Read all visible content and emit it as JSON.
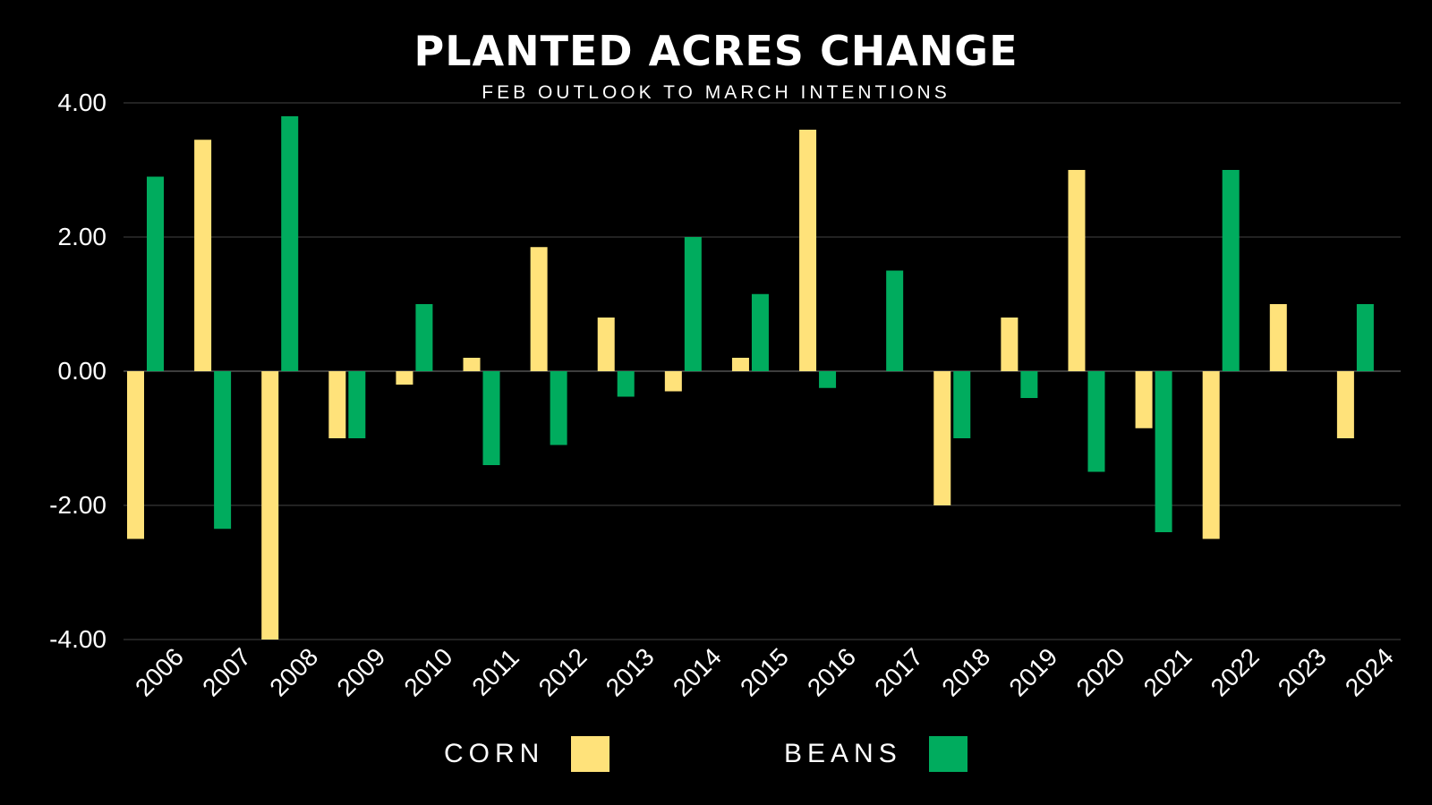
{
  "chart_data": {
    "type": "bar",
    "title": "PLANTED ACRES CHANGE",
    "subtitle": "FEB OUTLOOK TO MARCH INTENTIONS",
    "categories": [
      "2006",
      "2007",
      "2008",
      "2009",
      "2010",
      "2011",
      "2012",
      "2013",
      "2014",
      "2015",
      "2016",
      "2017",
      "2018",
      "2019",
      "2020",
      "2021",
      "2022",
      "2023",
      "2024"
    ],
    "series": [
      {
        "name": "CORN",
        "color": "#FFE27A",
        "values": [
          -2.5,
          3.45,
          -4.0,
          -1.0,
          -0.2,
          0.2,
          1.85,
          0.8,
          -0.3,
          0.2,
          3.6,
          0.0,
          -2.0,
          0.8,
          3.0,
          -0.85,
          -2.5,
          1.0,
          -1.0
        ]
      },
      {
        "name": "BEANS",
        "color": "#00AC5E",
        "values": [
          2.9,
          -2.35,
          3.8,
          -1.0,
          1.0,
          -1.4,
          -1.1,
          -0.38,
          2.0,
          1.15,
          -0.25,
          1.5,
          -1.0,
          -0.4,
          -1.5,
          -2.4,
          3.0,
          0.0,
          1.0
        ]
      }
    ],
    "yticks": [
      "4.00",
      "2.00",
      "0.00",
      "-2.00",
      "-4.00"
    ],
    "ylim": [
      -4,
      4
    ],
    "xlabel": "",
    "ylabel": "",
    "grid": true
  },
  "legend": {
    "corn_label": "CORN",
    "beans_label": "BEANS"
  }
}
